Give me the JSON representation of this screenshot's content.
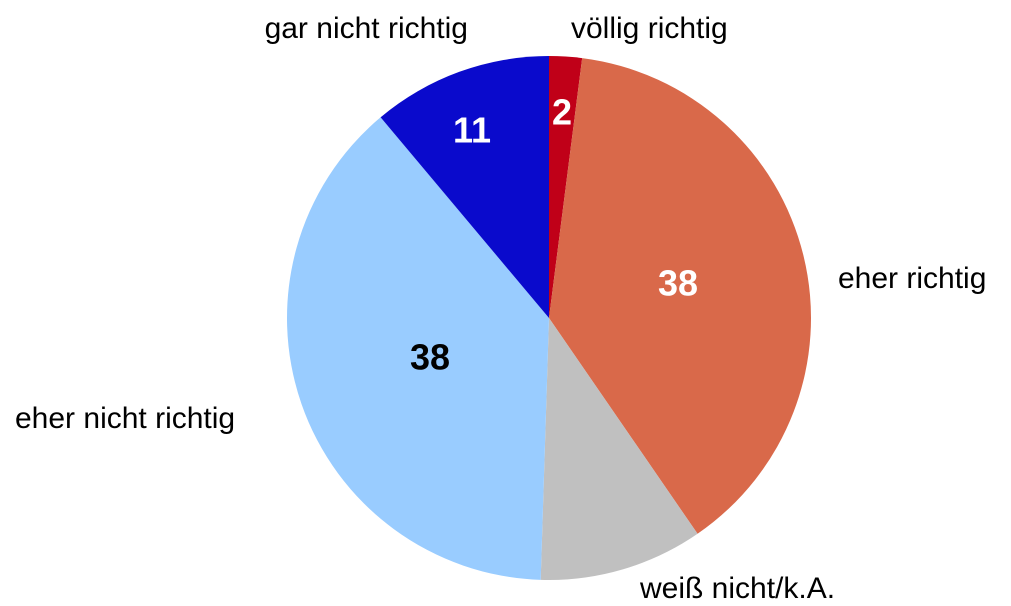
{
  "chart_data": {
    "type": "pie",
    "categories": [
      "völlig richtig",
      "eher richtig",
      "weiß nicht/k.A.",
      "eher nicht richtig",
      "gar nicht richtig"
    ],
    "values": [
      2,
      38,
      10,
      38,
      11
    ],
    "value_labels": [
      "2",
      "38",
      null,
      "38",
      "11"
    ],
    "colors": [
      "#c00018",
      "#d9694a",
      "#c0c0c0",
      "#99ccff",
      "#0a0acc"
    ],
    "label_colors": [
      "#ffffff",
      "#ffffff",
      "#000000",
      "#000000",
      "#ffffff"
    ]
  }
}
